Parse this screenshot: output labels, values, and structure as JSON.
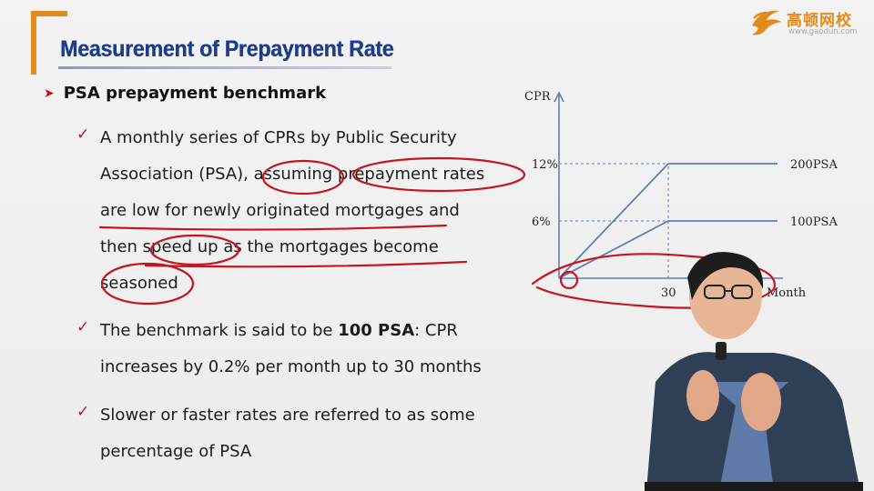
{
  "slide": {
    "title": "Measurement of Prepayment Rate",
    "logo": {
      "brand_text": "高顿网校",
      "url_text": "www.gaodun.com",
      "accent_color": "#e48a1b"
    },
    "heading": "PSA prepayment benchmark",
    "bullets": [
      {
        "lines": [
          "A monthly series of CPRs by Public Security",
          "Association (PSA), assuming prepayment rates",
          "are low for newly originated mortgages and",
          "then speed up as the mortgages become",
          "seasoned"
        ]
      },
      {
        "line1_pre": "The benchmark is said to be ",
        "line1_bold": "100 PSA",
        "line1_post": ":  CPR",
        "line2": "increases by 0.2% per month up to 30 months"
      },
      {
        "lines": [
          "Slower or faster rates are referred to as some",
          "percentage of PSA"
        ]
      }
    ]
  },
  "chart_data": {
    "type": "line",
    "ylabel": "CPR",
    "xlabel": "Month",
    "x_tick_labels": [
      "30"
    ],
    "y_tick_labels": [
      "6%",
      "12%"
    ],
    "series": [
      {
        "name": "200PSA",
        "x": [
          0,
          30,
          60
        ],
        "y": [
          0,
          12,
          12
        ]
      },
      {
        "name": "100PSA",
        "x": [
          0,
          30,
          60
        ],
        "y": [
          0,
          6,
          6
        ]
      }
    ],
    "xlim": [
      0,
      60
    ],
    "ylim": [
      0,
      20
    ],
    "line_color": "#5b7fb8"
  },
  "colors": {
    "title_blue": "#1c3c8c",
    "bullet_red": "#c0141c",
    "ink_red": "#c4161c"
  }
}
